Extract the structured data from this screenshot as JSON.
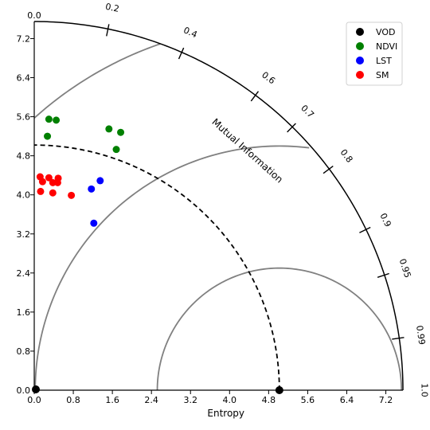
{
  "chart_data": {
    "type": "scatter",
    "subtype": "taylor-diagram",
    "xlabel": "Entropy",
    "ylabel": "",
    "angular_label": "Mutual Information",
    "radial_max": 7.55,
    "reference": {
      "name": "VOD",
      "entropy": 5.02,
      "color": "#000000"
    },
    "x_ticks": [
      "0.0",
      "0.8",
      "1.6",
      "2.4",
      "3.2",
      "4.0",
      "4.8",
      "5.6",
      "6.4",
      "7.2"
    ],
    "y_ticks": [
      "0.0",
      "0.8",
      "1.6",
      "2.4",
      "3.2",
      "4.0",
      "4.8",
      "5.6",
      "6.4",
      "7.2"
    ],
    "angular_ticks": [
      "0.0",
      "0.2",
      "0.4",
      "0.6",
      "0.7",
      "0.8",
      "0.9",
      "0.95",
      "0.99",
      "1.0"
    ],
    "angular_tick_values": [
      0.0,
      0.2,
      0.4,
      0.6,
      0.7,
      0.8,
      0.9,
      0.95,
      0.99,
      1.0
    ],
    "rms_centers_fraction": 2.5,
    "rms_radii": [
      2.5,
      5.0
    ],
    "legend": {
      "placement": "top-right",
      "entries": [
        "VOD",
        "NDVI",
        "LST",
        "SM"
      ]
    },
    "series": [
      {
        "name": "NDVI",
        "color": "#008000",
        "points": [
          {
            "x": 0.3,
            "y": 5.55
          },
          {
            "x": 0.45,
            "y": 5.53
          },
          {
            "x": 0.27,
            "y": 5.2
          },
          {
            "x": 1.53,
            "y": 5.35
          },
          {
            "x": 1.77,
            "y": 5.28
          },
          {
            "x": 1.68,
            "y": 4.93
          }
        ]
      },
      {
        "name": "LST",
        "color": "#0000ff",
        "points": [
          {
            "x": 1.35,
            "y": 4.29
          },
          {
            "x": 1.17,
            "y": 4.12
          },
          {
            "x": 1.22,
            "y": 3.42
          }
        ]
      },
      {
        "name": "SM",
        "color": "#ff0000",
        "points": [
          {
            "x": 0.12,
            "y": 4.37
          },
          {
            "x": 0.17,
            "y": 4.27
          },
          {
            "x": 0.3,
            "y": 4.35
          },
          {
            "x": 0.49,
            "y": 4.34
          },
          {
            "x": 0.38,
            "y": 4.25
          },
          {
            "x": 0.48,
            "y": 4.25
          },
          {
            "x": 0.13,
            "y": 4.07
          },
          {
            "x": 0.38,
            "y": 4.04
          },
          {
            "x": 0.76,
            "y": 3.99
          }
        ]
      }
    ]
  }
}
